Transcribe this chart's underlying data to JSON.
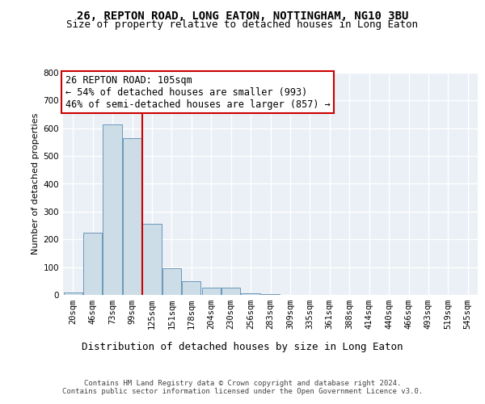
{
  "title1": "26, REPTON ROAD, LONG EATON, NOTTINGHAM, NG10 3BU",
  "title2": "Size of property relative to detached houses in Long Eaton",
  "xlabel": "Distribution of detached houses by size in Long Eaton",
  "ylabel": "Number of detached properties",
  "bar_labels": [
    "20sqm",
    "46sqm",
    "73sqm",
    "99sqm",
    "125sqm",
    "151sqm",
    "178sqm",
    "204sqm",
    "230sqm",
    "256sqm",
    "283sqm",
    "309sqm",
    "335sqm",
    "361sqm",
    "388sqm",
    "414sqm",
    "440sqm",
    "466sqm",
    "493sqm",
    "519sqm",
    "545sqm"
  ],
  "bar_values": [
    10,
    225,
    615,
    565,
    255,
    95,
    50,
    25,
    25,
    7,
    3,
    0,
    0,
    0,
    0,
    0,
    0,
    0,
    0,
    0,
    0
  ],
  "bar_color": "#ccdde8",
  "bar_edgecolor": "#5a8ab0",
  "vline_x": 3.5,
  "vline_color": "#cc0000",
  "annotation_text": "26 REPTON ROAD: 105sqm\n← 54% of detached houses are smaller (993)\n46% of semi-detached houses are larger (857) →",
  "annotation_box_facecolor": "#ffffff",
  "annotation_box_edgecolor": "#cc0000",
  "ylim": [
    0,
    800
  ],
  "yticks": [
    0,
    100,
    200,
    300,
    400,
    500,
    600,
    700,
    800
  ],
  "plot_bg_color": "#eaf0f6",
  "footer_text": "Contains HM Land Registry data © Crown copyright and database right 2024.\nContains public sector information licensed under the Open Government Licence v3.0.",
  "title_fontsize": 10,
  "subtitle_fontsize": 9,
  "tick_fontsize": 7.5,
  "ylabel_fontsize": 8,
  "xlabel_fontsize": 9,
  "annotation_fontsize": 8.5,
  "footer_fontsize": 6.5
}
